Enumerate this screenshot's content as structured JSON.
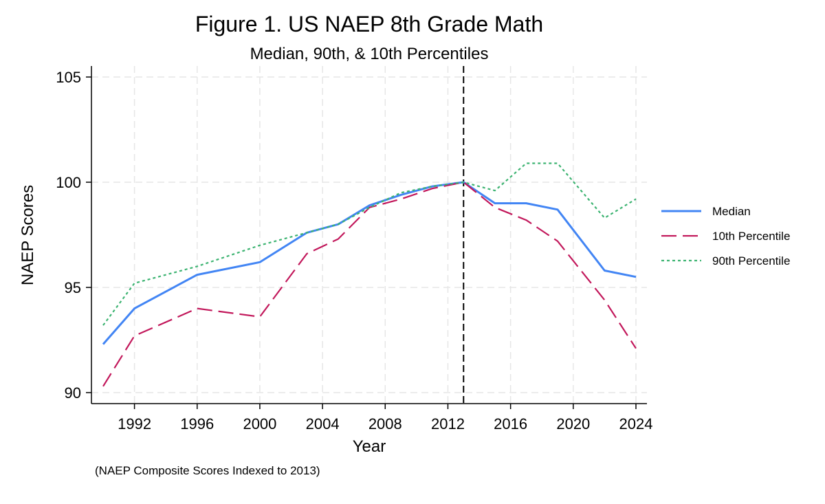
{
  "chart_data": {
    "type": "line",
    "title": "Figure 1. US NAEP 8th Grade Math",
    "subtitle": "Median, 90th, & 10th Percentiles",
    "xlabel": "Year",
    "ylabel": "NAEP Scores",
    "note": "(NAEP Composite Scores Indexed to 2013)",
    "xlim": [
      1990,
      2024
    ],
    "ylim": [
      90,
      105
    ],
    "x_ticks": [
      1992,
      1996,
      2000,
      2004,
      2008,
      2012,
      2016,
      2020,
      2024
    ],
    "y_ticks": [
      90,
      95,
      100,
      105
    ],
    "grid": true,
    "legend_position": "right",
    "reference_line_x": 2013,
    "series": [
      {
        "name": "Median",
        "color": "#4285f4",
        "style": "solid",
        "x": [
          1990,
          1992,
          1996,
          2000,
          2003,
          2005,
          2007,
          2009,
          2011,
          2013,
          2015,
          2017,
          2019,
          2022,
          2024
        ],
        "values": [
          92.3,
          94.0,
          95.6,
          96.2,
          97.6,
          98.0,
          98.9,
          99.4,
          99.8,
          100.0,
          99.0,
          99.0,
          98.7,
          95.8,
          95.5
        ]
      },
      {
        "name": "10th Percentile",
        "color": "#c2185b",
        "style": "longdash",
        "x": [
          1990,
          1992,
          1996,
          2000,
          2003,
          2005,
          2007,
          2009,
          2011,
          2013,
          2015,
          2017,
          2019,
          2022,
          2024
        ],
        "values": [
          90.3,
          92.7,
          94.0,
          93.6,
          96.6,
          97.3,
          98.8,
          99.2,
          99.7,
          100.0,
          98.8,
          98.2,
          97.2,
          94.4,
          92.1
        ]
      },
      {
        "name": "90th Percentile",
        "color": "#3cb371",
        "style": "dotted",
        "x": [
          1990,
          1992,
          1996,
          2000,
          2003,
          2005,
          2007,
          2009,
          2011,
          2013,
          2015,
          2017,
          2019,
          2022,
          2024
        ],
        "values": [
          93.2,
          95.2,
          96.0,
          97.0,
          97.6,
          98.0,
          98.8,
          99.5,
          99.8,
          100.0,
          99.6,
          100.9,
          100.9,
          98.3,
          99.2
        ]
      }
    ]
  }
}
